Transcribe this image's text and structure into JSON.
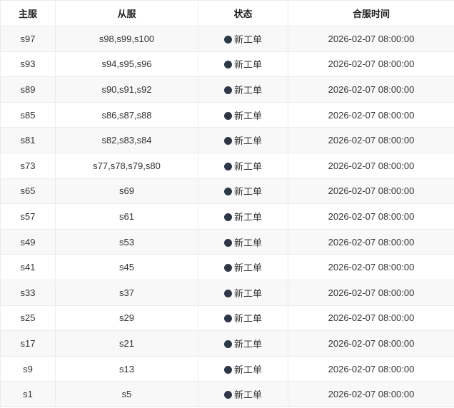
{
  "headers": [
    "主服",
    "从服",
    "状态",
    "合服时间"
  ],
  "status_color": "#2d3748",
  "rows": [
    {
      "main": "s97",
      "subs": "s98,s99,s100",
      "status": "新工单",
      "time": "2026-02-07 08:00:00"
    },
    {
      "main": "s93",
      "subs": "s94,s95,s96",
      "status": "新工单",
      "time": "2026-02-07 08:00:00"
    },
    {
      "main": "s89",
      "subs": "s90,s91,s92",
      "status": "新工单",
      "time": "2026-02-07 08:00:00"
    },
    {
      "main": "s85",
      "subs": "s86,s87,s88",
      "status": "新工单",
      "time": "2026-02-07 08:00:00"
    },
    {
      "main": "s81",
      "subs": "s82,s83,s84",
      "status": "新工单",
      "time": "2026-02-07 08:00:00"
    },
    {
      "main": "s73",
      "subs": "s77,s78,s79,s80",
      "status": "新工单",
      "time": "2026-02-07 08:00:00"
    },
    {
      "main": "s65",
      "subs": "s69",
      "status": "新工单",
      "time": "2026-02-07 08:00:00"
    },
    {
      "main": "s57",
      "subs": "s61",
      "status": "新工单",
      "time": "2026-02-07 08:00:00"
    },
    {
      "main": "s49",
      "subs": "s53",
      "status": "新工单",
      "time": "2026-02-07 08:00:00"
    },
    {
      "main": "s41",
      "subs": "s45",
      "status": "新工单",
      "time": "2026-02-07 08:00:00"
    },
    {
      "main": "s33",
      "subs": "s37",
      "status": "新工单",
      "time": "2026-02-07 08:00:00"
    },
    {
      "main": "s25",
      "subs": "s29",
      "status": "新工单",
      "time": "2026-02-07 08:00:00"
    },
    {
      "main": "s17",
      "subs": "s21",
      "status": "新工单",
      "time": "2026-02-07 08:00:00"
    },
    {
      "main": "s9",
      "subs": "s13",
      "status": "新工单",
      "time": "2026-02-07 08:00:00"
    },
    {
      "main": "s1",
      "subs": "s5",
      "status": "新工单",
      "time": "2026-02-07 08:00:00"
    }
  ]
}
